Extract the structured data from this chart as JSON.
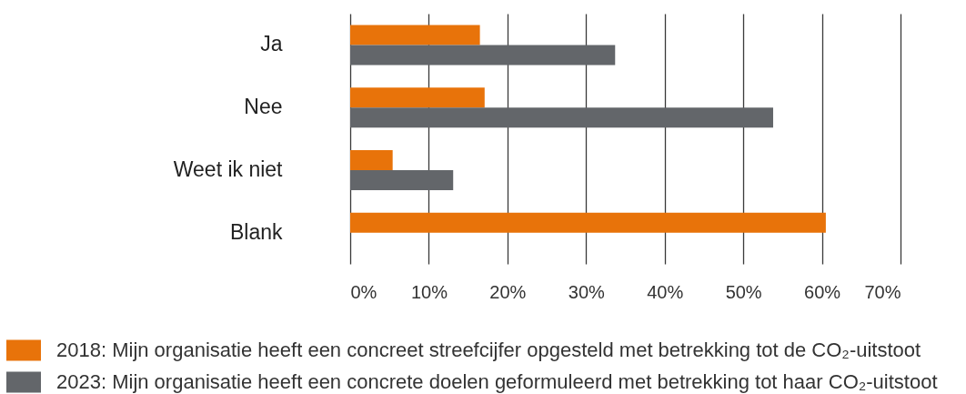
{
  "chart_data": {
    "type": "bar",
    "orientation": "horizontal",
    "categories": [
      "Ja",
      "Nee",
      "Weet ik niet",
      "Blank"
    ],
    "series": [
      {
        "name": "2018: Mijn organisatie heeft een concreet streefcijfer opgesteld met betrekking tot de CO₂-uitstoot",
        "color": "#e8730a",
        "values": [
          16.5,
          17.1,
          5.4,
          60.5
        ]
      },
      {
        "name": "2023: Mijn organisatie heeft een concrete doelen geformuleerd met betrekking tot haar CO₂-uitstoot",
        "color": "#63666a",
        "values": [
          33.7,
          53.8,
          13.1,
          null
        ]
      }
    ],
    "xlim": [
      0,
      70
    ],
    "xticks": [
      {
        "value": 0,
        "label": "0%"
      },
      {
        "value": 10,
        "label": "10%"
      },
      {
        "value": 20,
        "label": "20%"
      },
      {
        "value": 30,
        "label": "30%"
      },
      {
        "value": 40,
        "label": "40%"
      },
      {
        "value": 50,
        "label": "50%"
      },
      {
        "value": 60,
        "label": "60%"
      },
      {
        "value": 70,
        "label": "70%"
      }
    ],
    "grid": "x",
    "legend": "bottom left"
  }
}
